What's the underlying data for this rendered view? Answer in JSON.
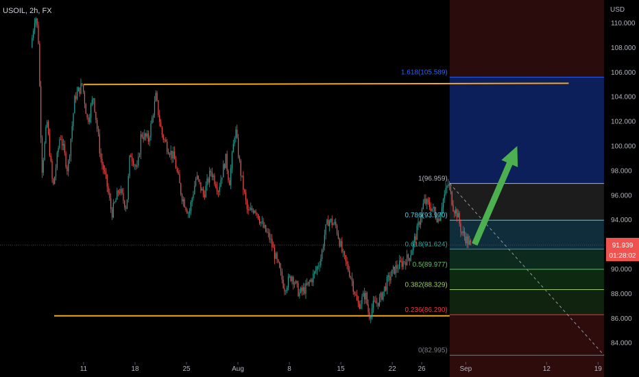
{
  "header": {
    "symbol_label": "USOIL, 2h, FX",
    "currency": "USD"
  },
  "price_badge": {
    "price": "91.939",
    "countdown": "01:28:02",
    "value": 91.939
  },
  "colors": {
    "background": "#000000",
    "candle_up": "#26a69a",
    "candle_down": "#ef5350",
    "trendline": "#f5a623",
    "arrow": "#4caf50",
    "price_badge": "#ef5350"
  },
  "chart_data": {
    "type": "candlestick",
    "instrument": "USOIL",
    "interval": "2h",
    "ylim": [
      82.5,
      111.5
    ],
    "yticks": [
      84,
      86,
      88,
      90,
      92,
      94,
      96,
      98,
      100,
      102,
      104,
      106,
      108,
      110
    ],
    "ytick_labels": [
      "84.000",
      "86.000",
      "88.000",
      "90.000",
      "92.000",
      "94.000",
      "96.000",
      "98.000",
      "100.000",
      "102.000",
      "104.000",
      "106.000",
      "108.000",
      "110.000"
    ],
    "xticks": [
      {
        "label": "11",
        "day": 11
      },
      {
        "label": "18",
        "day": 18
      },
      {
        "label": "25",
        "day": 25
      },
      {
        "label": "Aug",
        "day": 32
      },
      {
        "label": "8",
        "day": 39
      },
      {
        "label": "15",
        "day": 46
      },
      {
        "label": "22",
        "day": 53
      },
      {
        "label": "26",
        "day": 57
      },
      {
        "label": "Sep",
        "day": 63
      },
      {
        "label": "12",
        "day": 74
      },
      {
        "label": "19",
        "day": 81
      }
    ],
    "price_path": [
      [
        4.0,
        108.0
      ],
      [
        4.6,
        110.8
      ],
      [
        5.0,
        109.0
      ],
      [
        5.5,
        98.0
      ],
      [
        6.2,
        102.0
      ],
      [
        7.0,
        96.5
      ],
      [
        8.0,
        101.0
      ],
      [
        9.0,
        98.0
      ],
      [
        10.0,
        104.0
      ],
      [
        11.0,
        105.0
      ],
      [
        11.7,
        102.0
      ],
      [
        12.5,
        104.0
      ],
      [
        13.5,
        99.0
      ],
      [
        14.3,
        97.0
      ],
      [
        15.0,
        94.5
      ],
      [
        16.0,
        96.5
      ],
      [
        17.0,
        95.0
      ],
      [
        17.5,
        99.5
      ],
      [
        18.5,
        98.0
      ],
      [
        19.0,
        101.0
      ],
      [
        20.0,
        100.5
      ],
      [
        21.0,
        104.0
      ],
      [
        21.8,
        101.0
      ],
      [
        22.5,
        100.0
      ],
      [
        23.5,
        99.0
      ],
      [
        24.5,
        96.0
      ],
      [
        25.5,
        94.5
      ],
      [
        26.5,
        97.5
      ],
      [
        27.5,
        96.0
      ],
      [
        28.5,
        98.0
      ],
      [
        29.5,
        96.5
      ],
      [
        30.5,
        99.0
      ],
      [
        31.0,
        97.0
      ],
      [
        31.8,
        101.5
      ],
      [
        32.5,
        98.0
      ],
      [
        33.5,
        94.5
      ],
      [
        34.5,
        95.0
      ],
      [
        35.5,
        93.5
      ],
      [
        36.5,
        92.5
      ],
      [
        37.5,
        90.5
      ],
      [
        38.5,
        88.5
      ],
      [
        39.5,
        89.5
      ],
      [
        40.5,
        88.0
      ],
      [
        41.5,
        88.5
      ],
      [
        42.5,
        89.5
      ],
      [
        43.5,
        91.0
      ],
      [
        44.0,
        93.0
      ],
      [
        44.5,
        94.0
      ],
      [
        45.5,
        93.5
      ],
      [
        46.5,
        91.0
      ],
      [
        47.5,
        89.5
      ],
      [
        48.5,
        87.0
      ],
      [
        49.5,
        88.0
      ],
      [
        50.0,
        86.2
      ],
      [
        50.5,
        87.0
      ],
      [
        51.5,
        87.5
      ],
      [
        52.5,
        89.0
      ],
      [
        53.5,
        90.0
      ],
      [
        54.5,
        90.5
      ],
      [
        55.5,
        91.0
      ],
      [
        56.5,
        93.0
      ],
      [
        57.5,
        95.5
      ],
      [
        58.5,
        95.0
      ],
      [
        59.5,
        94.0
      ],
      [
        60.0,
        95.5
      ],
      [
        60.8,
        96.959
      ],
      [
        61.5,
        95.0
      ],
      [
        62.0,
        94.5
      ],
      [
        62.6,
        93.0
      ],
      [
        63.2,
        92.5
      ],
      [
        63.8,
        91.939
      ]
    ],
    "fibonacci": [
      {
        "ratio": "1.618",
        "price": 105.589,
        "label": "1.618(105.589)",
        "color": "#2962ff",
        "fill": "#0c1f5a"
      },
      {
        "ratio": "1",
        "price": 96.959,
        "label": "1(96.959)",
        "color": "#b2b5be",
        "fill": "#1c1c1c"
      },
      {
        "ratio": "0.786",
        "price": 93.97,
        "label": "0.786(93.970)",
        "color": "#4dd0e1",
        "fill": "#0f2d3a"
      },
      {
        "ratio": "0.618",
        "price": 91.624,
        "label": "0.618(91.624)",
        "color": "#26a69a",
        "fill": "#0c2a1e"
      },
      {
        "ratio": "0.5",
        "price": 89.977,
        "label": "0.5(89.977)",
        "color": "#66bb6a",
        "fill": "#0d2a10"
      },
      {
        "ratio": "0.382",
        "price": 88.329,
        "label": "0.382(88.329)",
        "color": "#9ccc65",
        "fill": "#10230e"
      },
      {
        "ratio": "0.236",
        "price": 86.29,
        "label": "0.236(86.290)",
        "color": "#f23645",
        "fill": "#2e0c0c"
      },
      {
        "ratio": "0",
        "price": 82.995,
        "label": "0(82.995)",
        "color": "#787b86",
        "fill": "#2e0c0c"
      }
    ],
    "fib_range_days": [
      60.8,
      81.8
    ],
    "trendlines": [
      {
        "from": [
          11.0,
          105.0
        ],
        "to": [
          77.0,
          105.1
        ]
      },
      {
        "from": [
          7.0,
          86.2
        ],
        "to": [
          60.8,
          86.2
        ]
      }
    ],
    "diagonal": {
      "from": [
        60.8,
        96.959
      ],
      "to": [
        81.8,
        83.0
      ]
    },
    "arrow": {
      "from": [
        64.2,
        92.0
      ],
      "to": [
        70.0,
        100.0
      ]
    },
    "last_price_line": 91.939
  }
}
